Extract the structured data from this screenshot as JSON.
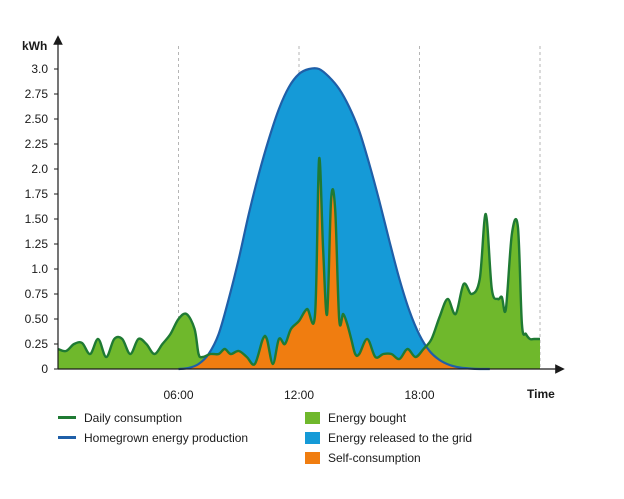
{
  "chart_data": {
    "type": "area",
    "xlabel": "Time",
    "ylabel": "kWh",
    "xlim": [
      0,
      24
    ],
    "ylim": [
      0,
      3.0
    ],
    "x_ticks": [
      {
        "value": 6,
        "label": "06:00"
      },
      {
        "value": 12,
        "label": "12:00"
      },
      {
        "value": 18,
        "label": "18:00"
      }
    ],
    "y_ticks": [
      {
        "value": 0,
        "label": "0"
      },
      {
        "value": 0.25,
        "label": "0.25"
      },
      {
        "value": 0.5,
        "label": "0.50"
      },
      {
        "value": 0.75,
        "label": "0.75"
      },
      {
        "value": 1.0,
        "label": "1.0"
      },
      {
        "value": 1.25,
        "label": "1.25"
      },
      {
        "value": 1.5,
        "label": "1.50"
      },
      {
        "value": 1.75,
        "label": "1.75"
      },
      {
        "value": 2.0,
        "label": "2.0"
      },
      {
        "value": 2.25,
        "label": "2.25"
      },
      {
        "value": 2.5,
        "label": "2.50"
      },
      {
        "value": 2.75,
        "label": "2.75"
      },
      {
        "value": 3.0,
        "label": "3.0"
      }
    ],
    "grid": "vertical-dashed",
    "series": [
      {
        "name": "Daily consumption",
        "kind": "line",
        "color": "#1f7a33",
        "x": [
          0,
          0.4,
          0.8,
          1.2,
          1.6,
          2.0,
          2.4,
          2.8,
          3.2,
          3.6,
          4.0,
          4.4,
          4.8,
          5.2,
          5.6,
          6.0,
          6.4,
          6.8,
          7.0,
          7.2,
          7.6,
          8.0,
          8.3,
          8.6,
          9.0,
          9.4,
          9.8,
          10.2,
          10.4,
          10.7,
          11.0,
          11.3,
          11.6,
          12.0,
          12.4,
          12.8,
          13.0,
          13.2,
          13.4,
          13.6,
          13.8,
          14.0,
          14.2,
          14.4,
          14.6,
          14.8,
          15.0,
          15.4,
          15.8,
          16.2,
          16.6,
          17.0,
          17.4,
          17.8,
          18.2,
          18.6,
          19.0,
          19.4,
          19.8,
          20.2,
          20.6,
          21.0,
          21.3,
          21.6,
          21.9,
          22.1,
          22.3,
          22.6,
          22.9,
          23.1,
          23.3,
          23.5,
          23.7,
          24.0
        ],
        "values": [
          0.2,
          0.18,
          0.25,
          0.26,
          0.15,
          0.3,
          0.12,
          0.3,
          0.3,
          0.15,
          0.3,
          0.25,
          0.15,
          0.25,
          0.35,
          0.5,
          0.55,
          0.4,
          0.15,
          0.12,
          0.15,
          0.15,
          0.2,
          0.15,
          0.18,
          0.12,
          0.05,
          0.3,
          0.3,
          0.05,
          0.3,
          0.25,
          0.4,
          0.48,
          0.6,
          0.55,
          2.1,
          1.2,
          0.55,
          1.7,
          1.6,
          0.5,
          0.55,
          0.45,
          0.3,
          0.15,
          0.15,
          0.3,
          0.12,
          0.15,
          0.15,
          0.1,
          0.2,
          0.12,
          0.2,
          0.3,
          0.52,
          0.7,
          0.55,
          0.85,
          0.75,
          0.9,
          1.55,
          0.8,
          0.7,
          0.72,
          0.6,
          1.35,
          1.42,
          0.45,
          0.35,
          0.3,
          0.3,
          0.3
        ]
      },
      {
        "name": "Homegrown energy production",
        "kind": "line",
        "color": "#1f5fa8",
        "x": [
          6.0,
          6.5,
          7.0,
          7.5,
          8.0,
          8.5,
          9.0,
          9.5,
          10.0,
          10.5,
          11.0,
          11.5,
          12.0,
          12.5,
          13.0,
          13.5,
          14.0,
          14.5,
          15.0,
          15.5,
          16.0,
          16.5,
          17.0,
          17.5,
          18.0,
          18.5,
          19.0,
          19.5,
          20.0,
          20.5,
          21.0,
          21.5
        ],
        "values": [
          0.0,
          0.01,
          0.05,
          0.15,
          0.35,
          0.7,
          1.1,
          1.55,
          1.95,
          2.3,
          2.6,
          2.82,
          2.95,
          3.0,
          3.0,
          2.92,
          2.8,
          2.62,
          2.38,
          2.05,
          1.68,
          1.28,
          0.9,
          0.58,
          0.34,
          0.18,
          0.09,
          0.04,
          0.015,
          0.005,
          0.0,
          0.0
        ]
      }
    ],
    "areas": [
      {
        "name": "Energy bought",
        "color": "#6fb82c"
      },
      {
        "name": "Energy released to the grid",
        "color": "#159ad7"
      },
      {
        "name": "Self-consumption",
        "color": "#f07d10"
      }
    ],
    "legend_placement": "bottom"
  },
  "legend": {
    "daily_consumption": "Daily consumption",
    "homegrown_production": "Homegrown energy production",
    "energy_bought": "Energy bought",
    "energy_released": "Energy released to the grid",
    "self_consumption": "Self-consumption"
  }
}
